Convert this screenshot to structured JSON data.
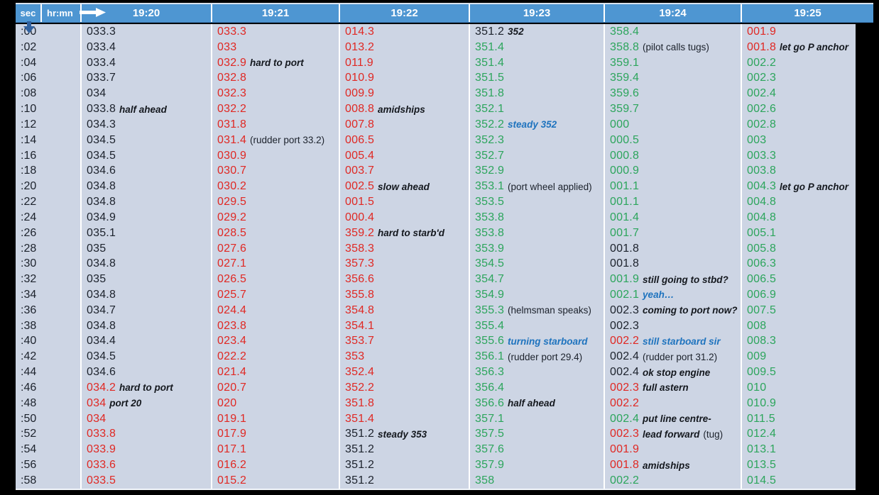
{
  "header": {
    "sec_label": "sec",
    "hrmn_label": "hr:mn",
    "times": [
      "19:20",
      "19:21",
      "19:22",
      "19:23",
      "19:24",
      "19:25"
    ]
  },
  "colors": {
    "header_bg": "#4E96D2",
    "body_bg": "#CDD5E4",
    "value_black": "#1C222C",
    "value_red": "#E02823",
    "value_green": "#2CA55C",
    "annotation_blue": "#1E73BE",
    "down_arrow": "#30619F"
  },
  "icons": {
    "right_arrow": "right-arrow-icon",
    "down_arrow": "down-arrow-icon"
  },
  "rows": [
    {
      "sec": ":00",
      "cells": [
        {
          "v": "033.3",
          "c": "k"
        },
        {
          "v": "033.3",
          "c": "r"
        },
        {
          "v": "014.3",
          "c": "r"
        },
        {
          "v": "351.2",
          "c": "k",
          "notes": [
            {
              "t": "352",
              "s": "bi"
            }
          ]
        },
        {
          "v": "358.4",
          "c": "g"
        },
        {
          "v": "001.9",
          "c": "r"
        }
      ]
    },
    {
      "sec": ":02",
      "cells": [
        {
          "v": "033.4",
          "c": "k"
        },
        {
          "v": "033",
          "c": "r"
        },
        {
          "v": "013.2",
          "c": "r"
        },
        {
          "v": "351.4",
          "c": "g"
        },
        {
          "v": "358.8",
          "c": "g",
          "notes": [
            {
              "t": "(pilot calls tugs)",
              "s": "reg"
            }
          ]
        },
        {
          "v": "001.8",
          "c": "r",
          "notes": [
            {
              "t": "let go P anchor",
              "s": "bi"
            }
          ]
        }
      ]
    },
    {
      "sec": ":04",
      "cells": [
        {
          "v": "033.4",
          "c": "k"
        },
        {
          "v": "032.9",
          "c": "r",
          "notes": [
            {
              "t": "hard to port",
              "s": "bi"
            }
          ]
        },
        {
          "v": "011.9",
          "c": "r"
        },
        {
          "v": "351.4",
          "c": "g"
        },
        {
          "v": "359.1",
          "c": "g"
        },
        {
          "v": "002.2",
          "c": "g"
        }
      ]
    },
    {
      "sec": ":06",
      "cells": [
        {
          "v": "033.7",
          "c": "k"
        },
        {
          "v": "032.8",
          "c": "r"
        },
        {
          "v": "010.9",
          "c": "r"
        },
        {
          "v": "351.5",
          "c": "g"
        },
        {
          "v": "359.4",
          "c": "g"
        },
        {
          "v": "002.3",
          "c": "g"
        }
      ]
    },
    {
      "sec": ":08",
      "cells": [
        {
          "v": "034",
          "c": "k"
        },
        {
          "v": "032.3",
          "c": "r"
        },
        {
          "v": "009.9",
          "c": "r"
        },
        {
          "v": "351.8",
          "c": "g"
        },
        {
          "v": "359.6",
          "c": "g"
        },
        {
          "v": "002.4",
          "c": "g"
        }
      ]
    },
    {
      "sec": ":10",
      "cells": [
        {
          "v": "033.8",
          "c": "k",
          "notes": [
            {
              "t": "half ahead",
              "s": "bi"
            }
          ]
        },
        {
          "v": "032.2",
          "c": "r"
        },
        {
          "v": "008.8",
          "c": "r",
          "notes": [
            {
              "t": "amidships",
              "s": "bi"
            }
          ]
        },
        {
          "v": "352.1",
          "c": "g"
        },
        {
          "v": "359.7",
          "c": "g"
        },
        {
          "v": "002.6",
          "c": "g"
        }
      ]
    },
    {
      "sec": ":12",
      "cells": [
        {
          "v": "034.3",
          "c": "k"
        },
        {
          "v": "031.8",
          "c": "r"
        },
        {
          "v": "007.8",
          "c": "r"
        },
        {
          "v": "352.2",
          "c": "g",
          "notes": [
            {
              "t": "steady 352",
              "s": "blue"
            }
          ]
        },
        {
          "v": "000",
          "c": "g"
        },
        {
          "v": "002.8",
          "c": "g"
        }
      ]
    },
    {
      "sec": ":14",
      "cells": [
        {
          "v": "034.5",
          "c": "k"
        },
        {
          "v": "031.4",
          "c": "r",
          "notes": [
            {
              "t": "(rudder port 33.2)",
              "s": "reg"
            }
          ]
        },
        {
          "v": "006.5",
          "c": "r"
        },
        {
          "v": "352.3",
          "c": "g"
        },
        {
          "v": "000.5",
          "c": "g"
        },
        {
          "v": "003",
          "c": "g"
        }
      ]
    },
    {
      "sec": ":16",
      "cells": [
        {
          "v": "034.5",
          "c": "k"
        },
        {
          "v": "030.9",
          "c": "r"
        },
        {
          "v": "005.4",
          "c": "r"
        },
        {
          "v": "352.7",
          "c": "g"
        },
        {
          "v": "000.8",
          "c": "g"
        },
        {
          "v": "003.3",
          "c": "g"
        }
      ]
    },
    {
      "sec": ":18",
      "cells": [
        {
          "v": "034.6",
          "c": "k"
        },
        {
          "v": "030.7",
          "c": "r"
        },
        {
          "v": "003.7",
          "c": "r"
        },
        {
          "v": "352.9",
          "c": "g"
        },
        {
          "v": "000.9",
          "c": "g"
        },
        {
          "v": "003.8",
          "c": "g"
        }
      ]
    },
    {
      "sec": ":20",
      "cells": [
        {
          "v": "034.8",
          "c": "k"
        },
        {
          "v": "030.2",
          "c": "r"
        },
        {
          "v": "002.5",
          "c": "r",
          "notes": [
            {
              "t": "slow ahead",
              "s": "bi"
            }
          ]
        },
        {
          "v": "353.1",
          "c": "g",
          "notes": [
            {
              "t": "(port wheel applied)",
              "s": "reg"
            }
          ]
        },
        {
          "v": "001.1",
          "c": "g"
        },
        {
          "v": "004.3",
          "c": "g",
          "notes": [
            {
              "t": "let go P anchor",
              "s": "bi"
            }
          ]
        }
      ]
    },
    {
      "sec": ":22",
      "cells": [
        {
          "v": "034.8",
          "c": "k"
        },
        {
          "v": "029.5",
          "c": "r"
        },
        {
          "v": "001.5",
          "c": "r"
        },
        {
          "v": "353.5",
          "c": "g"
        },
        {
          "v": "001.1",
          "c": "g"
        },
        {
          "v": "004.8",
          "c": "g"
        }
      ]
    },
    {
      "sec": ":24",
      "cells": [
        {
          "v": "034.9",
          "c": "k"
        },
        {
          "v": "029.2",
          "c": "r"
        },
        {
          "v": "000.4",
          "c": "r"
        },
        {
          "v": "353.8",
          "c": "g"
        },
        {
          "v": "001.4",
          "c": "g"
        },
        {
          "v": "004.8",
          "c": "g"
        }
      ]
    },
    {
      "sec": ":26",
      "cells": [
        {
          "v": "035.1",
          "c": "k"
        },
        {
          "v": "028.5",
          "c": "r"
        },
        {
          "v": "359.2",
          "c": "r",
          "notes": [
            {
              "t": "hard to starb'd",
              "s": "bi"
            }
          ]
        },
        {
          "v": "353.8",
          "c": "g"
        },
        {
          "v": "001.7",
          "c": "g"
        },
        {
          "v": "005.1",
          "c": "g"
        }
      ]
    },
    {
      "sec": ":28",
      "cells": [
        {
          "v": "035",
          "c": "k"
        },
        {
          "v": "027.6",
          "c": "r"
        },
        {
          "v": "358.3",
          "c": "r"
        },
        {
          "v": "353.9",
          "c": "g"
        },
        {
          "v": "001.8",
          "c": "k"
        },
        {
          "v": "005.8",
          "c": "g"
        }
      ]
    },
    {
      "sec": ":30",
      "cells": [
        {
          "v": "034.8",
          "c": "k"
        },
        {
          "v": "027.1",
          "c": "r"
        },
        {
          "v": "357.3",
          "c": "r"
        },
        {
          "v": "354.5",
          "c": "g"
        },
        {
          "v": "001.8",
          "c": "k"
        },
        {
          "v": "006.3",
          "c": "g"
        }
      ]
    },
    {
      "sec": ":32",
      "cells": [
        {
          "v": "035",
          "c": "k"
        },
        {
          "v": "026.5",
          "c": "r"
        },
        {
          "v": "356.6",
          "c": "r"
        },
        {
          "v": "354.7",
          "c": "g"
        },
        {
          "v": "001.9",
          "c": "g",
          "notes": [
            {
              "t": "still going to stbd?",
              "s": "bi"
            }
          ]
        },
        {
          "v": "006.5",
          "c": "g"
        }
      ]
    },
    {
      "sec": ":34",
      "cells": [
        {
          "v": "034.8",
          "c": "k"
        },
        {
          "v": "025.7",
          "c": "r"
        },
        {
          "v": "355.8",
          "c": "r"
        },
        {
          "v": "354.9",
          "c": "g"
        },
        {
          "v": "002.1",
          "c": "g",
          "notes": [
            {
              "t": "yeah…",
              "s": "blue"
            }
          ]
        },
        {
          "v": "006.9",
          "c": "g"
        }
      ]
    },
    {
      "sec": ":36",
      "cells": [
        {
          "v": "034.7",
          "c": "k"
        },
        {
          "v": "024.4",
          "c": "r"
        },
        {
          "v": "354.8",
          "c": "r"
        },
        {
          "v": "355.3",
          "c": "g",
          "notes": [
            {
              "t": "(helmsman speaks)",
              "s": "reg"
            }
          ]
        },
        {
          "v": "002.3",
          "c": "k",
          "notes": [
            {
              "t": "coming to port now?",
              "s": "bi"
            }
          ]
        },
        {
          "v": "007.5",
          "c": "g"
        }
      ]
    },
    {
      "sec": ":38",
      "cells": [
        {
          "v": "034.8",
          "c": "k"
        },
        {
          "v": "023.8",
          "c": "r"
        },
        {
          "v": "354.1",
          "c": "r"
        },
        {
          "v": "355.4",
          "c": "g"
        },
        {
          "v": "002.3",
          "c": "k"
        },
        {
          "v": "008",
          "c": "g"
        }
      ]
    },
    {
      "sec": ":40",
      "cells": [
        {
          "v": "034.4",
          "c": "k"
        },
        {
          "v": "023.4",
          "c": "r"
        },
        {
          "v": "353.7",
          "c": "r"
        },
        {
          "v": "355.6",
          "c": "g",
          "notes": [
            {
              "t": "turning starboard",
              "s": "blue"
            }
          ]
        },
        {
          "v": "002.2",
          "c": "r",
          "notes": [
            {
              "t": "still starboard sir",
              "s": "blue"
            }
          ]
        },
        {
          "v": "008.3",
          "c": "g"
        }
      ]
    },
    {
      "sec": ":42",
      "cells": [
        {
          "v": "034.5",
          "c": "k"
        },
        {
          "v": "022.2",
          "c": "r"
        },
        {
          "v": "353",
          "c": "r"
        },
        {
          "v": "356.1",
          "c": "g",
          "notes": [
            {
              "t": "(rudder port 29.4)",
              "s": "reg"
            }
          ]
        },
        {
          "v": "002.4",
          "c": "k",
          "notes": [
            {
              "t": "(rudder port 31.2)",
              "s": "reg"
            }
          ]
        },
        {
          "v": "009",
          "c": "g"
        }
      ]
    },
    {
      "sec": ":44",
      "cells": [
        {
          "v": "034.6",
          "c": "k"
        },
        {
          "v": "021.4",
          "c": "r"
        },
        {
          "v": "352.4",
          "c": "r"
        },
        {
          "v": "356.3",
          "c": "g"
        },
        {
          "v": "002.4",
          "c": "k",
          "notes": [
            {
              "t": "ok stop engine",
              "s": "bi"
            }
          ]
        },
        {
          "v": "009.5",
          "c": "g"
        }
      ]
    },
    {
      "sec": ":46",
      "cells": [
        {
          "v": "034.2",
          "c": "r",
          "notes": [
            {
              "t": "hard to port",
              "s": "bi"
            }
          ]
        },
        {
          "v": "020.7",
          "c": "r"
        },
        {
          "v": "352.2",
          "c": "r"
        },
        {
          "v": "356.4",
          "c": "g"
        },
        {
          "v": "002.3",
          "c": "r",
          "notes": [
            {
              "t": "full astern",
              "s": "bi"
            }
          ]
        },
        {
          "v": "010",
          "c": "g"
        }
      ]
    },
    {
      "sec": ":48",
      "cells": [
        {
          "v": "034",
          "c": "r",
          "notes": [
            {
              "t": "port 20",
              "s": "bi"
            }
          ]
        },
        {
          "v": "020",
          "c": "r"
        },
        {
          "v": "351.8",
          "c": "r"
        },
        {
          "v": "356.6",
          "c": "g",
          "notes": [
            {
              "t": "half ahead",
              "s": "bi"
            }
          ]
        },
        {
          "v": "002.2",
          "c": "r"
        },
        {
          "v": "010.9",
          "c": "g"
        }
      ]
    },
    {
      "sec": ":50",
      "cells": [
        {
          "v": "034",
          "c": "r"
        },
        {
          "v": "019.1",
          "c": "r"
        },
        {
          "v": "351.4",
          "c": "r"
        },
        {
          "v": "357.1",
          "c": "g"
        },
        {
          "v": "002.4",
          "c": "g",
          "notes": [
            {
              "t": "put line centre-",
              "s": "bi"
            }
          ]
        },
        {
          "v": "011.5",
          "c": "g"
        }
      ]
    },
    {
      "sec": ":52",
      "cells": [
        {
          "v": "033.8",
          "c": "r"
        },
        {
          "v": "017.9",
          "c": "r"
        },
        {
          "v": "351.2",
          "c": "k",
          "notes": [
            {
              "t": "steady 353",
              "s": "bi"
            }
          ]
        },
        {
          "v": "357.5",
          "c": "g"
        },
        {
          "v": "002.3",
          "c": "r",
          "notes": [
            {
              "t": "lead forward",
              "s": "bi"
            },
            {
              "t": "(tug)",
              "s": "reg"
            }
          ]
        },
        {
          "v": "012.4",
          "c": "g"
        }
      ]
    },
    {
      "sec": ":54",
      "cells": [
        {
          "v": "033.9",
          "c": "r"
        },
        {
          "v": "017.1",
          "c": "r"
        },
        {
          "v": "351.2",
          "c": "k"
        },
        {
          "v": "357.6",
          "c": "g"
        },
        {
          "v": "001.9",
          "c": "r"
        },
        {
          "v": "013.1",
          "c": "g"
        }
      ]
    },
    {
      "sec": ":56",
      "cells": [
        {
          "v": "033.6",
          "c": "r"
        },
        {
          "v": "016.2",
          "c": "r"
        },
        {
          "v": "351.2",
          "c": "k"
        },
        {
          "v": "357.9",
          "c": "g"
        },
        {
          "v": "001.8",
          "c": "r",
          "notes": [
            {
              "t": "amidships",
              "s": "bi"
            }
          ]
        },
        {
          "v": "013.5",
          "c": "g"
        }
      ]
    },
    {
      "sec": ":58",
      "cells": [
        {
          "v": "033.5",
          "c": "r"
        },
        {
          "v": "015.2",
          "c": "r"
        },
        {
          "v": "351.2",
          "c": "k"
        },
        {
          "v": "358",
          "c": "g"
        },
        {
          "v": "002.2",
          "c": "g"
        },
        {
          "v": "014.5",
          "c": "g"
        }
      ]
    }
  ]
}
